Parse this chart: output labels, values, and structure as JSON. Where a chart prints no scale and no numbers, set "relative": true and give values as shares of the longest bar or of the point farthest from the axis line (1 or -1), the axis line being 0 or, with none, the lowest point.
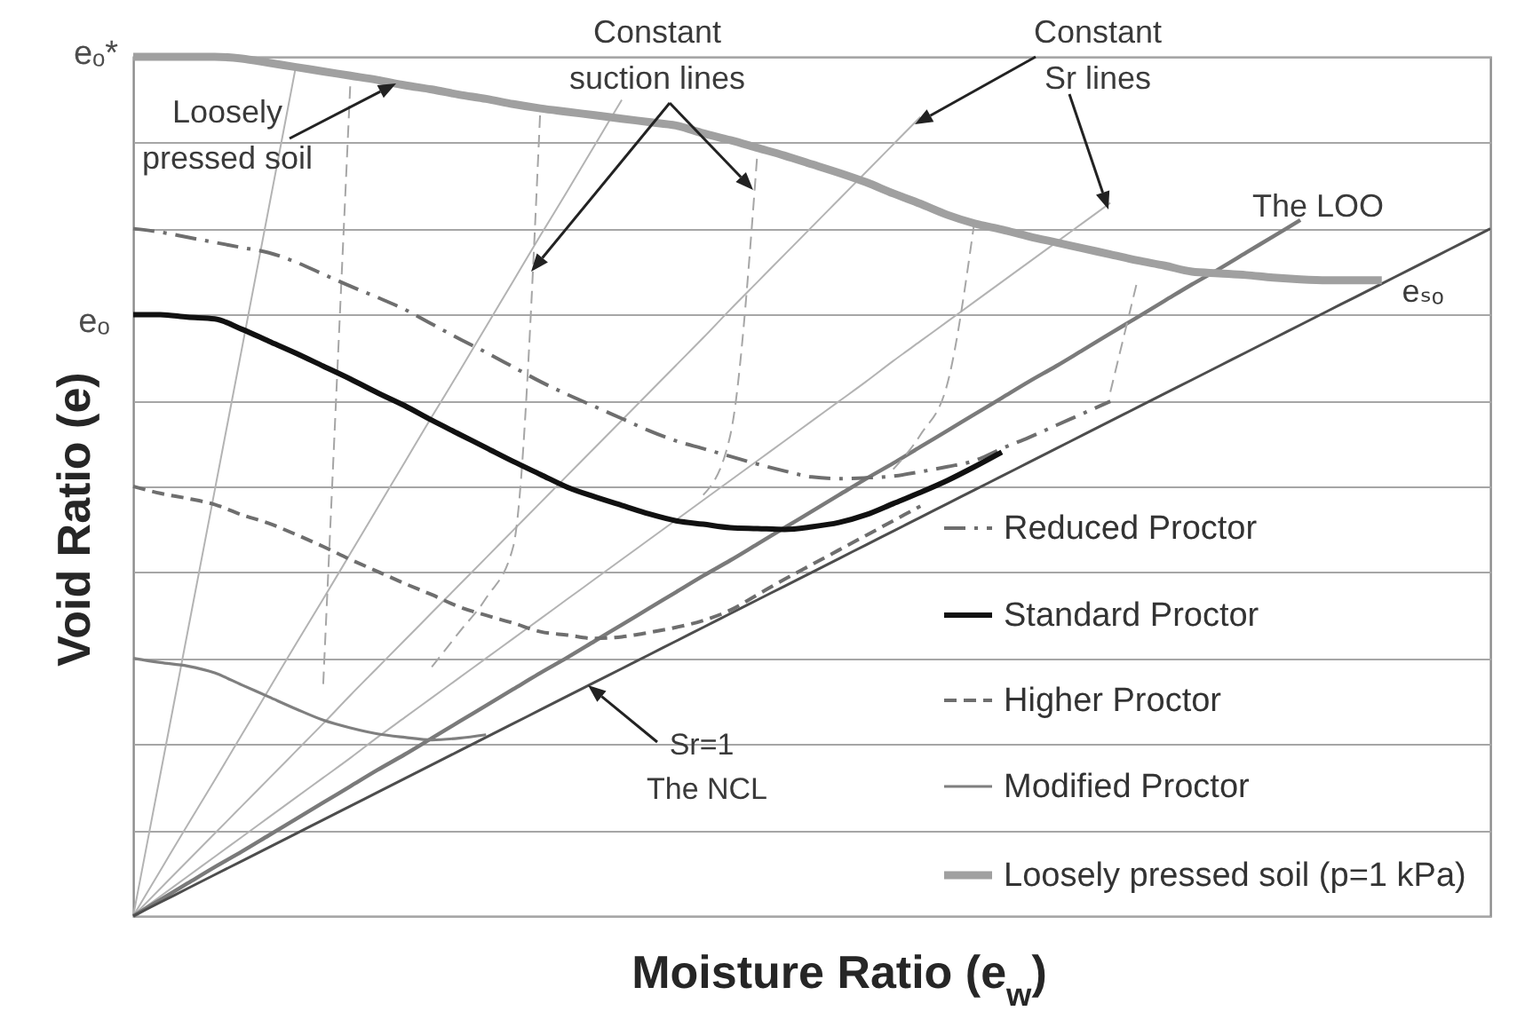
{
  "chart_data": {
    "type": "line",
    "relative": true,
    "xlabel": "Moisture Ratio (e$_{w}$)",
    "ylabel": "Void Ratio (e)",
    "grid": "y",
    "legend": "bottom right",
    "categories": [
      null,
      null,
      null,
      null,
      null,
      null,
      null,
      null,
      null,
      null,
      null,
      null,
      null,
      null,
      null,
      null,
      null,
      null,
      null,
      null,
      null,
      null,
      null,
      null,
      null,
      null,
      null,
      null,
      null,
      null,
      null,
      null,
      null,
      null,
      null,
      null,
      null,
      null,
      null,
      null,
      null,
      null,
      null,
      null,
      null,
      null,
      null,
      null,
      null,
      null,
      null
    ],
    "series": [
      {
        "color": "#b3b3b3",
        "values": [
          0,
          0.165,
          0.33,
          0.495,
          0.66,
          0.825,
          0.99,
          null,
          null,
          null,
          null,
          null,
          null,
          null,
          null,
          null,
          null,
          null,
          null,
          null,
          null,
          null,
          null,
          null,
          null,
          null,
          null,
          null,
          null,
          null,
          null,
          null,
          null,
          null,
          null,
          null,
          null,
          null,
          null,
          null,
          null,
          null,
          null,
          null,
          null,
          null,
          null,
          null,
          null,
          null,
          null
        ]
      },
      {
        "color": "#b3b3b3",
        "values": [
          0,
          0.053,
          0.106,
          0.158,
          0.211,
          0.264,
          0.317,
          0.369,
          0.422,
          0.475,
          0.528,
          0.581,
          0.633,
          0.686,
          0.739,
          0.792,
          0.844,
          0.897,
          0.95,
          null,
          null,
          null,
          null,
          null,
          null,
          null,
          null,
          null,
          null,
          null,
          null,
          null,
          null,
          null,
          null,
          null,
          null,
          null,
          null,
          null,
          null,
          null,
          null,
          null,
          null,
          null,
          null,
          null,
          null,
          null,
          null
        ]
      },
      {
        "color": "#b3b3b3",
        "values": [
          0,
          0.032,
          0.064,
          0.096,
          0.128,
          0.16,
          0.192,
          0.224,
          0.257,
          0.289,
          0.321,
          0.353,
          0.385,
          0.417,
          0.449,
          0.481,
          0.513,
          0.545,
          0.577,
          0.609,
          0.641,
          0.673,
          0.706,
          0.738,
          0.77,
          0.802,
          0.834,
          0.866,
          0.898,
          0.93,
          null,
          null,
          null,
          null,
          null,
          null,
          null,
          null,
          null,
          null,
          null,
          null,
          null,
          null,
          null,
          null,
          null,
          null,
          null,
          null,
          null
        ]
      },
      {
        "color": "#b3b3b3",
        "values": [
          0,
          0.023,
          0.046,
          0.069,
          0.092,
          0.115,
          0.138,
          0.161,
          0.184,
          0.208,
          0.231,
          0.254,
          0.277,
          0.3,
          0.323,
          0.346,
          0.369,
          0.392,
          0.415,
          0.438,
          0.461,
          0.484,
          0.507,
          0.53,
          0.553,
          0.576,
          0.599,
          0.622,
          0.646,
          0.669,
          0.692,
          0.715,
          0.738,
          0.761,
          0.784,
          0.807,
          0.83,
          null,
          null,
          null,
          null,
          null,
          null,
          null,
          null,
          null,
          null,
          null,
          null,
          null,
          null
        ]
      },
      {
        "color": "#7a7a7a",
        "values": [
          0,
          0.019,
          0.038,
          0.057,
          0.075,
          0.094,
          0.113,
          0.132,
          0.151,
          0.17,
          0.188,
          0.207,
          0.226,
          0.245,
          0.264,
          0.283,
          0.301,
          0.32,
          0.339,
          0.358,
          0.377,
          0.396,
          0.414,
          0.433,
          0.452,
          0.471,
          0.49,
          0.509,
          0.527,
          0.546,
          0.565,
          0.584,
          0.603,
          0.622,
          0.64,
          0.659,
          0.678,
          0.697,
          0.716,
          0.735,
          0.753,
          0.772,
          0.791,
          0.81,
          null,
          null,
          null,
          null,
          null,
          null,
          null
        ]
      },
      {
        "color": "#4d4d4d",
        "values": [
          0,
          0.016,
          0.032,
          0.048,
          0.064,
          0.08,
          0.096,
          0.112,
          0.128,
          0.144,
          0.16,
          0.176,
          0.192,
          0.208,
          0.224,
          0.24,
          0.256,
          0.272,
          0.288,
          0.304,
          0.32,
          0.336,
          0.352,
          0.368,
          0.384,
          0.4,
          0.416,
          0.432,
          0.448,
          0.464,
          0.48,
          0.496,
          0.512,
          0.528,
          0.544,
          0.56,
          0.576,
          0.592,
          0.608,
          0.624,
          0.64,
          0.656,
          0.672,
          0.688,
          0.704,
          0.72,
          0.736,
          0.752,
          0.768,
          0.784,
          0.8
        ]
      },
      {
        "color": "#a6a6a6",
        "line_style": "dashed",
        "values": [
          null,
          null,
          null,
          null,
          null,
          null,
          null,
          0.27,
          0.97,
          null,
          null,
          null,
          null,
          null,
          null,
          null,
          null,
          null,
          null,
          null,
          null,
          null,
          null,
          null,
          null,
          null,
          null,
          null,
          null,
          null,
          null,
          null,
          null,
          null,
          null,
          null,
          null,
          null,
          null,
          null,
          null,
          null,
          null,
          null,
          null,
          null,
          null,
          null,
          null,
          null,
          null
        ]
      },
      {
        "color": "#a6a6a6",
        "line_style": "dashed",
        "values": [
          null,
          null,
          null,
          null,
          null,
          null,
          null,
          null,
          null,
          null,
          null,
          0.29,
          0.33,
          0.37,
          0.43,
          0.94,
          null,
          null,
          null,
          null,
          null,
          null,
          null,
          null,
          null,
          null,
          null,
          null,
          null,
          null,
          null,
          null,
          null,
          null,
          null,
          null,
          null,
          null,
          null,
          null,
          null,
          null,
          null,
          null,
          null,
          null,
          null,
          null,
          null,
          null,
          null
        ]
      },
      {
        "color": "#a6a6a6",
        "line_style": "dashed",
        "values": [
          null,
          null,
          null,
          null,
          null,
          null,
          null,
          null,
          null,
          null,
          null,
          null,
          null,
          null,
          null,
          null,
          null,
          null,
          null,
          null,
          null,
          0.49,
          0.56,
          0.89,
          null,
          null,
          null,
          null,
          null,
          null,
          null,
          null,
          null,
          null,
          null,
          null,
          null,
          null,
          null,
          null,
          null,
          null,
          null,
          null,
          null,
          null,
          null,
          null,
          null,
          null,
          null
        ]
      },
      {
        "color": "#a6a6a6",
        "line_style": "dashed",
        "values": [
          null,
          null,
          null,
          null,
          null,
          null,
          null,
          null,
          null,
          null,
          null,
          null,
          null,
          null,
          null,
          null,
          null,
          null,
          null,
          null,
          null,
          null,
          null,
          null,
          null,
          null,
          null,
          null,
          0.52,
          0.56,
          0.62,
          0.81,
          null,
          null,
          null,
          null,
          null,
          null,
          null,
          null,
          null,
          null,
          null,
          null,
          null,
          null,
          null,
          null,
          null,
          null,
          null
        ]
      },
      {
        "color": "#a6a6a6",
        "line_style": "dashed",
        "values": [
          null,
          null,
          null,
          null,
          null,
          null,
          null,
          null,
          null,
          null,
          null,
          null,
          null,
          null,
          null,
          null,
          null,
          null,
          null,
          null,
          null,
          null,
          null,
          null,
          null,
          null,
          null,
          null,
          null,
          null,
          null,
          null,
          null,
          null,
          null,
          null,
          0.61,
          0.74,
          null,
          null,
          null,
          null,
          null,
          null,
          null,
          null,
          null,
          null,
          null,
          null,
          null
        ]
      },
      {
        "name": "Reduced Proctor",
        "color": "#6e6e6e",
        "line_style": "dashdot",
        "values": [
          0.8,
          0.796,
          0.79,
          0.784,
          0.778,
          0.772,
          0.761,
          0.747,
          0.733,
          0.72,
          0.706,
          0.689,
          0.672,
          0.656,
          0.639,
          0.622,
          0.607,
          0.593,
          0.579,
          0.565,
          0.553,
          0.544,
          0.535,
          0.526,
          0.518,
          0.511,
          0.509,
          0.51,
          0.512,
          0.517,
          0.523,
          0.53,
          0.544,
          0.557,
          0.571,
          0.585,
          0.599,
          null,
          null,
          null,
          null,
          null,
          null,
          null,
          null,
          null,
          null,
          null,
          null,
          null,
          null
        ]
      },
      {
        "name": "Standard Proctor",
        "color": "#111111",
        "line_style": "solid",
        "values": [
          0.7,
          0.7,
          0.697,
          0.695,
          0.683,
          0.669,
          0.655,
          0.64,
          0.625,
          0.609,
          0.594,
          0.577,
          0.561,
          0.545,
          0.529,
          0.514,
          0.499,
          0.488,
          0.478,
          0.468,
          0.46,
          0.456,
          0.452,
          0.451,
          0.45,
          0.453,
          0.458,
          0.467,
          0.48,
          0.493,
          0.507,
          0.523,
          0.54,
          null,
          null,
          null,
          null,
          null,
          null,
          null,
          null,
          null,
          null,
          null,
          null,
          null,
          null,
          null,
          null,
          null,
          null
        ]
      },
      {
        "name": "Higher Proctor",
        "color": "#6e6e6e",
        "line_style": "dashed",
        "values": [
          0.5,
          0.492,
          0.486,
          0.479,
          0.467,
          0.457,
          0.444,
          0.43,
          0.415,
          0.401,
          0.387,
          0.374,
          0.36,
          0.35,
          0.341,
          0.331,
          0.327,
          0.323,
          0.325,
          0.33,
          0.336,
          0.344,
          0.356,
          0.374,
          0.392,
          0.409,
          0.426,
          0.443,
          0.46,
          0.477,
          null,
          null,
          null,
          null,
          null,
          null,
          null,
          null,
          null,
          null,
          null,
          null,
          null,
          null,
          null,
          null,
          null,
          null,
          null,
          null,
          null
        ]
      },
      {
        "name": "Modified Proctor",
        "color": "#7f7f7f",
        "line_style": "solid",
        "values": [
          0.3,
          0.295,
          0.291,
          0.283,
          0.269,
          0.255,
          0.241,
          0.228,
          0.219,
          0.212,
          0.208,
          0.205,
          0.207,
          0.211,
          null,
          null,
          null,
          null,
          null,
          null,
          null,
          null,
          null,
          null,
          null,
          null,
          null,
          null,
          null,
          null,
          null,
          null,
          null,
          null,
          null,
          null,
          null,
          null,
          null,
          null,
          null,
          null,
          null,
          null,
          null,
          null,
          null,
          null,
          null,
          null,
          null
        ]
      },
      {
        "name": "Loosely pressed soil (p=1 kPa)",
        "color": "#a0a0a0",
        "line_style": "solid",
        "values": [
          1,
          1,
          1,
          1,
          0.998,
          0.993,
          0.988,
          0.983,
          0.978,
          0.973,
          0.967,
          0.962,
          0.956,
          0.951,
          0.945,
          0.94,
          0.936,
          0.932,
          0.928,
          0.924,
          0.92,
          0.911,
          0.903,
          0.894,
          0.885,
          0.875,
          0.865,
          0.854,
          0.841,
          0.829,
          0.816,
          0.806,
          0.799,
          0.791,
          0.784,
          0.777,
          0.77,
          0.763,
          0.757,
          0.75,
          0.748,
          0.746,
          0.743,
          0.741,
          0.74,
          0.74,
          0.74,
          null,
          null,
          null,
          null
        ]
      }
    ],
    "annotations": [
      "eₒ*",
      "eₒ",
      "Loosely pressed soil",
      "Constant suction lines",
      "Constant Sr lines",
      "The LOO",
      "Sr=1",
      "The NCL",
      "eₛₒ"
    ]
  }
}
